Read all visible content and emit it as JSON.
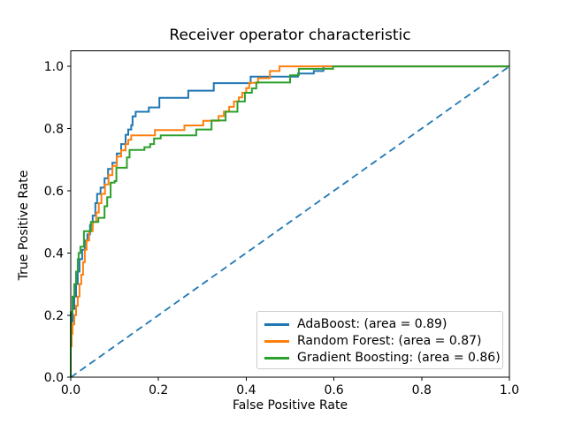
{
  "chart_data": {
    "type": "line",
    "title": "Receiver operator characteristic",
    "xlabel": "False Positive Rate",
    "ylabel": "True Positive Rate",
    "xlim": [
      0.0,
      1.0
    ],
    "ylim": [
      0.0,
      1.05
    ],
    "grid": false,
    "x_ticks": {
      "values": [
        0.0,
        0.2,
        0.4,
        0.6,
        0.8,
        1.0
      ],
      "labels": [
        "0.0",
        "0.2",
        "0.4",
        "0.6",
        "0.8",
        "1.0"
      ]
    },
    "y_ticks": {
      "values": [
        0.0,
        0.2,
        0.4,
        0.6,
        0.8,
        1.0
      ],
      "labels": [
        "0.0",
        "0.2",
        "0.4",
        "0.6",
        "0.8",
        "1.0"
      ]
    },
    "legend": {
      "position": "lower right"
    },
    "series": [
      {
        "name": "AdaBoost",
        "legend_label": "AdaBoost: (area = 0.89)",
        "area": 0.89,
        "color": "#1f77b4",
        "style": "solid",
        "points": [
          [
            0,
            0
          ],
          [
            0,
            0.1
          ],
          [
            0.002,
            0.14
          ],
          [
            0.004,
            0.18
          ],
          [
            0.008,
            0.22
          ],
          [
            0.012,
            0.26
          ],
          [
            0.016,
            0.3
          ],
          [
            0.02,
            0.34
          ],
          [
            0.026,
            0.38
          ],
          [
            0.032,
            0.41
          ],
          [
            0.038,
            0.44
          ],
          [
            0.044,
            0.46
          ],
          [
            0.05,
            0.49
          ],
          [
            0.056,
            0.52
          ],
          [
            0.06,
            0.56
          ],
          [
            0.068,
            0.59
          ],
          [
            0.077,
            0.61
          ],
          [
            0.085,
            0.64
          ],
          [
            0.095,
            0.67
          ],
          [
            0.105,
            0.69
          ],
          [
            0.115,
            0.72
          ],
          [
            0.125,
            0.75
          ],
          [
            0.131,
            0.78
          ],
          [
            0.138,
            0.797
          ],
          [
            0.141,
            0.811
          ],
          [
            0.148,
            0.839
          ],
          [
            0.178,
            0.854
          ],
          [
            0.202,
            0.868
          ],
          [
            0.268,
            0.899
          ],
          [
            0.326,
            0.922
          ],
          [
            0.41,
            0.946
          ],
          [
            0.518,
            0.967
          ],
          [
            0.554,
            0.977
          ],
          [
            0.576,
            0.985
          ],
          [
            0.639,
            1.0
          ],
          [
            1.0,
            1.0
          ]
        ]
      },
      {
        "name": "Random Forest",
        "legend_label": "Random Forest: (area = 0.87)",
        "area": 0.87,
        "color": "#ff7f0e",
        "style": "solid",
        "points": [
          [
            0,
            0
          ],
          [
            0,
            0.06
          ],
          [
            0.002,
            0.1
          ],
          [
            0.004,
            0.14
          ],
          [
            0.008,
            0.17
          ],
          [
            0.012,
            0.2
          ],
          [
            0.016,
            0.23
          ],
          [
            0.02,
            0.26
          ],
          [
            0.024,
            0.3
          ],
          [
            0.028,
            0.33
          ],
          [
            0.032,
            0.37
          ],
          [
            0.036,
            0.41
          ],
          [
            0.042,
            0.44
          ],
          [
            0.05,
            0.47
          ],
          [
            0.058,
            0.5
          ],
          [
            0.064,
            0.53
          ],
          [
            0.07,
            0.56
          ],
          [
            0.078,
            0.59
          ],
          [
            0.086,
            0.62
          ],
          [
            0.095,
            0.65
          ],
          [
            0.105,
            0.68
          ],
          [
            0.115,
            0.71
          ],
          [
            0.125,
            0.73
          ],
          [
            0.131,
            0.75
          ],
          [
            0.138,
            0.764
          ],
          [
            0.192,
            0.778
          ],
          [
            0.259,
            0.795
          ],
          [
            0.302,
            0.81
          ],
          [
            0.337,
            0.825
          ],
          [
            0.349,
            0.84
          ],
          [
            0.361,
            0.855
          ],
          [
            0.372,
            0.87
          ],
          [
            0.383,
            0.887
          ],
          [
            0.391,
            0.9
          ],
          [
            0.4,
            0.915
          ],
          [
            0.407,
            0.93
          ],
          [
            0.427,
            0.947
          ],
          [
            0.454,
            0.962
          ],
          [
            0.476,
            0.985
          ],
          [
            0.575,
            1.0
          ],
          [
            1.0,
            1.0
          ]
        ]
      },
      {
        "name": "Gradient Boosting",
        "legend_label": "Gradient Boosting: (area = 0.86)",
        "area": 0.86,
        "color": "#2ca02c",
        "style": "solid",
        "points": [
          [
            0,
            0
          ],
          [
            0,
            0.16
          ],
          [
            0.004,
            0.21
          ],
          [
            0.008,
            0.26
          ],
          [
            0.012,
            0.3
          ],
          [
            0.016,
            0.34
          ],
          [
            0.018,
            0.38
          ],
          [
            0.022,
            0.4
          ],
          [
            0.03,
            0.42
          ],
          [
            0.046,
            0.47
          ],
          [
            0.063,
            0.5
          ],
          [
            0.077,
            0.513
          ],
          [
            0.083,
            0.55
          ],
          [
            0.091,
            0.579
          ],
          [
            0.1,
            0.626
          ],
          [
            0.104,
            0.631
          ],
          [
            0.128,
            0.674
          ],
          [
            0.134,
            0.707
          ],
          [
            0.168,
            0.731
          ],
          [
            0.181,
            0.74
          ],
          [
            0.19,
            0.75
          ],
          [
            0.205,
            0.768
          ],
          [
            0.286,
            0.778
          ],
          [
            0.321,
            0.797
          ],
          [
            0.353,
            0.826
          ],
          [
            0.38,
            0.854
          ],
          [
            0.397,
            0.887
          ],
          [
            0.413,
            0.915
          ],
          [
            0.423,
            0.929
          ],
          [
            0.5,
            0.948
          ],
          [
            0.52,
            0.971
          ],
          [
            0.598,
            0.992
          ],
          [
            0.615,
            1.0
          ],
          [
            1.0,
            1.0
          ]
        ]
      }
    ],
    "chance_line": {
      "points": [
        [
          0,
          0
        ],
        [
          1,
          1
        ]
      ],
      "color": "#1f77b4",
      "style": "dashed"
    },
    "axes_color": "#000000"
  }
}
